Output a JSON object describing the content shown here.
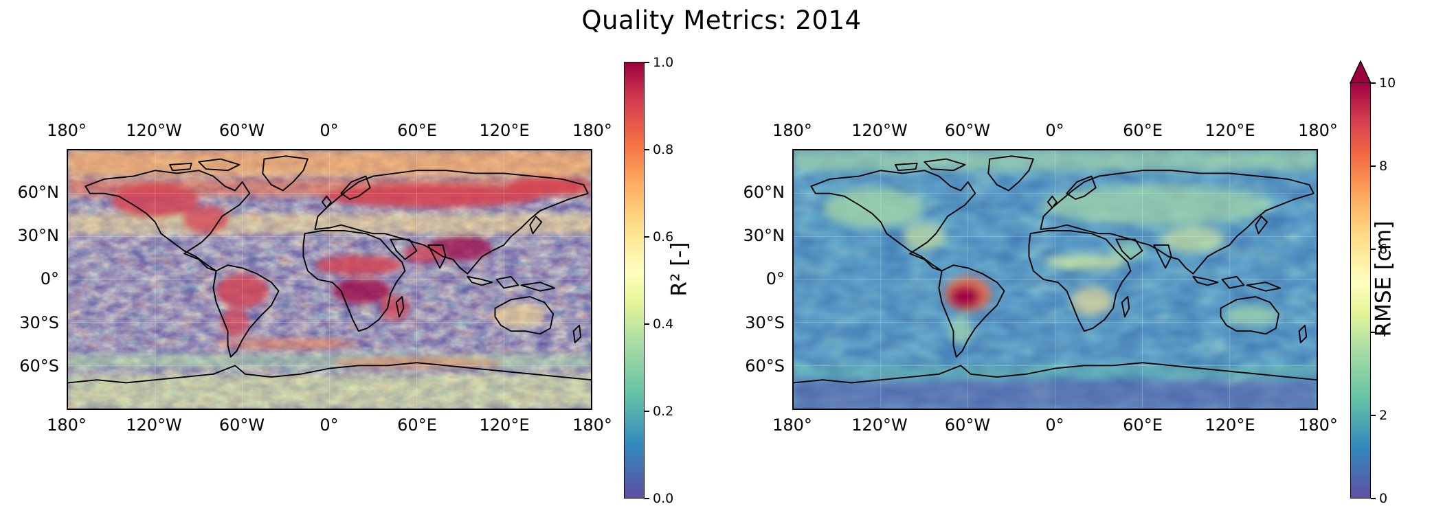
{
  "title": "Quality Metrics: 2014",
  "lon_ticks": [
    "180°",
    "120°W",
    "60°W",
    "0°",
    "60°E",
    "120°E",
    "180°"
  ],
  "lat_ticks": [
    "60°N",
    "30°N",
    "0°",
    "30°S",
    "60°S"
  ],
  "lon_values": [
    -180,
    -120,
    -60,
    0,
    60,
    120,
    180
  ],
  "lat_values": [
    60,
    30,
    0,
    -30,
    -60
  ],
  "panels": [
    {
      "metric": "R²",
      "colorbar": {
        "label": "R² [-]",
        "ticks": [
          "0.0",
          "0.2",
          "0.4",
          "0.6",
          "0.8",
          "1.0"
        ],
        "range": [
          0,
          1
        ],
        "extend": "neither"
      },
      "colormap": "Spectral_r",
      "pattern": "high values over tropical land (Amazon, Sahel/Central Africa, South & Southeast Asia) and northern Eurasia; noisy mid-range values over oceans"
    },
    {
      "metric": "RMSE",
      "colorbar": {
        "label": "RMSE [cm]",
        "ticks": [
          "0",
          "2",
          "4",
          "6",
          "8",
          "10"
        ],
        "range": [
          0,
          10
        ],
        "extend": "max"
      },
      "colormap": "Spectral_r",
      "pattern": "low values over oceans; moderate over land; maximum over the Amazon basin"
    }
  ],
  "colors": {
    "low": "#5e4fa2",
    "mid": "#ffffbf",
    "high": "#9e0142",
    "coastline": "#000000"
  }
}
